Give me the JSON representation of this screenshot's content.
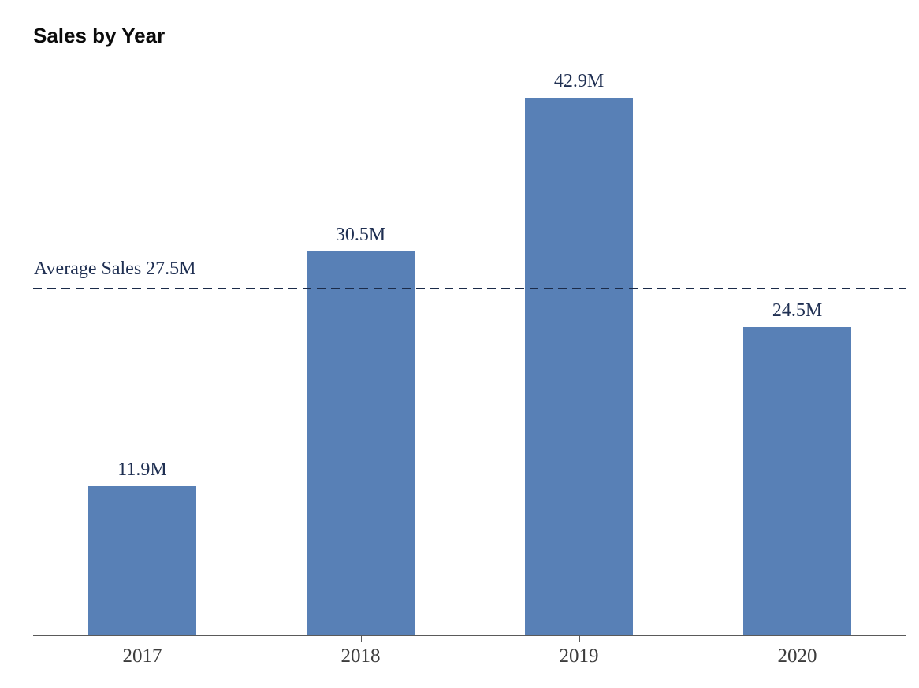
{
  "chart_data": {
    "type": "bar",
    "title": "Sales by Year",
    "categories": [
      "2017",
      "2018",
      "2019",
      "2020"
    ],
    "values": [
      11.9,
      30.5,
      42.9,
      24.5
    ],
    "value_labels": [
      "11.9M",
      "30.5M",
      "42.9M",
      "24.5M"
    ],
    "unit": "M",
    "xlabel": "",
    "ylabel": "",
    "ylim": [
      0,
      44.8
    ],
    "average": 27.5,
    "average_label": "Average Sales 27.5M",
    "grid": false,
    "legend": false,
    "y_axis_visible": false,
    "annotation_position": "above-line-left",
    "colors": {
      "bar": "#5880b6",
      "average_line": "#1b2b49",
      "data_label_text": "#1f2f52",
      "axis_line": "#5a5a5a",
      "tick_label_text": "#3d3d3d",
      "title_text": "#0b0b0b",
      "background": "#ffffff"
    }
  }
}
